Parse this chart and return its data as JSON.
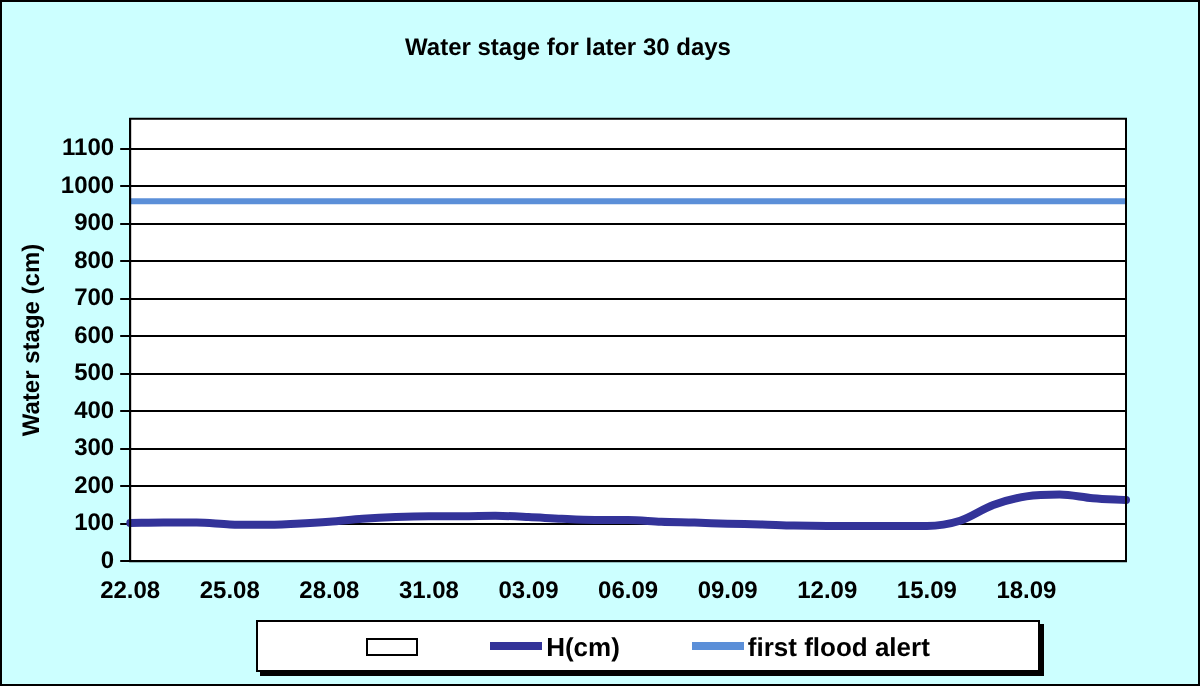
{
  "chart_data": {
    "type": "line",
    "title": "Water stage for later 30 days",
    "ylabel": "Water stage (cm)",
    "categories": [
      "22.08",
      null,
      null,
      "25.08",
      null,
      null,
      "28.08",
      null,
      null,
      "31.08",
      null,
      null,
      "03.09",
      null,
      null,
      "06.09",
      null,
      null,
      "09.09",
      null,
      null,
      "12.09",
      null,
      null,
      "15.09",
      null,
      null,
      "18.09",
      null,
      null,
      null
    ],
    "series": [
      {
        "name": "H(cm)",
        "color": "#333399",
        "values": [
          102,
          103,
          103,
          98,
          97,
          100,
          105,
          113,
          118,
          120,
          120,
          121,
          118,
          113,
          110,
          110,
          105,
          103,
          100,
          98,
          95,
          94,
          94,
          94,
          94,
          108,
          150,
          173,
          178,
          168,
          163
        ]
      }
    ],
    "ref_lines": [
      {
        "axis": "y",
        "value": 960,
        "label": "first flood alert",
        "color": "#5b8fd8"
      }
    ],
    "ylim": [
      0,
      1180
    ],
    "yticks": [
      0,
      100,
      200,
      300,
      400,
      500,
      600,
      700,
      800,
      900,
      1000,
      1100
    ],
    "grid": "y",
    "legend": "bottom",
    "marker": "none",
    "line_style": "solid"
  }
}
